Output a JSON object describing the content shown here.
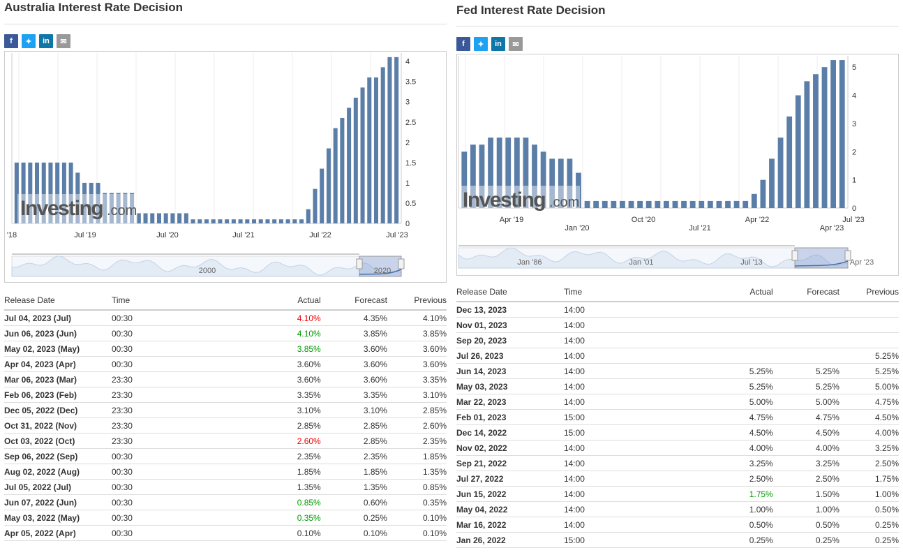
{
  "left": {
    "title": "Australia Interest Rate Decision",
    "share_icons": [
      "facebook-icon",
      "twitter-icon",
      "linkedin-icon",
      "email-icon"
    ],
    "watermark": "Investing",
    "watermark_suffix": ".com",
    "chart_data": {
      "type": "bar",
      "yticks": [
        "0",
        "0.5",
        "1",
        "1.5",
        "2",
        "2.5",
        "3",
        "3.5",
        "4"
      ],
      "ylim": [
        0,
        4.2
      ],
      "xticks": [
        "'18",
        "Jul '19",
        "Jul '20",
        "Jul '21",
        "Jul '22",
        "Jul '23"
      ],
      "values": [
        1.5,
        1.5,
        1.5,
        1.5,
        1.5,
        1.5,
        1.5,
        1.5,
        1.5,
        1.25,
        1.0,
        1.0,
        1.0,
        0.75,
        0.75,
        0.75,
        0.75,
        0.75,
        0.25,
        0.25,
        0.25,
        0.25,
        0.25,
        0.25,
        0.25,
        0.25,
        0.1,
        0.1,
        0.1,
        0.1,
        0.1,
        0.1,
        0.1,
        0.1,
        0.1,
        0.1,
        0.1,
        0.1,
        0.1,
        0.1,
        0.1,
        0.1,
        0.1,
        0.35,
        0.85,
        1.35,
        1.85,
        2.35,
        2.6,
        2.85,
        3.1,
        3.35,
        3.6,
        3.6,
        3.85,
        4.1,
        4.1
      ],
      "navigator_labels": [
        "2000",
        "2020"
      ]
    },
    "table": {
      "headers": {
        "date": "Release Date",
        "time": "Time",
        "actual": "Actual",
        "forecast": "Forecast",
        "previous": "Previous"
      },
      "rows": [
        {
          "date": "Jul 04, 2023 (Jul)",
          "time": "00:30",
          "actual": "4.10%",
          "forecast": "4.35%",
          "previous": "4.10%",
          "status": "red"
        },
        {
          "date": "Jun 06, 2023 (Jun)",
          "time": "00:30",
          "actual": "4.10%",
          "forecast": "3.85%",
          "previous": "3.85%",
          "status": "green"
        },
        {
          "date": "May 02, 2023 (May)",
          "time": "00:30",
          "actual": "3.85%",
          "forecast": "3.60%",
          "previous": "3.60%",
          "status": "green"
        },
        {
          "date": "Apr 04, 2023 (Apr)",
          "time": "00:30",
          "actual": "3.60%",
          "forecast": "3.60%",
          "previous": "3.60%",
          "status": "normal"
        },
        {
          "date": "Mar 06, 2023 (Mar)",
          "time": "23:30",
          "actual": "3.60%",
          "forecast": "3.60%",
          "previous": "3.35%",
          "status": "normal"
        },
        {
          "date": "Feb 06, 2023 (Feb)",
          "time": "23:30",
          "actual": "3.35%",
          "forecast": "3.35%",
          "previous": "3.10%",
          "status": "normal"
        },
        {
          "date": "Dec 05, 2022 (Dec)",
          "time": "23:30",
          "actual": "3.10%",
          "forecast": "3.10%",
          "previous": "2.85%",
          "status": "normal"
        },
        {
          "date": "Oct 31, 2022 (Nov)",
          "time": "23:30",
          "actual": "2.85%",
          "forecast": "2.85%",
          "previous": "2.60%",
          "status": "normal"
        },
        {
          "date": "Oct 03, 2022 (Oct)",
          "time": "23:30",
          "actual": "2.60%",
          "forecast": "2.85%",
          "previous": "2.35%",
          "status": "red"
        },
        {
          "date": "Sep 06, 2022 (Sep)",
          "time": "00:30",
          "actual": "2.35%",
          "forecast": "2.35%",
          "previous": "1.85%",
          "status": "normal"
        },
        {
          "date": "Aug 02, 2022 (Aug)",
          "time": "00:30",
          "actual": "1.85%",
          "forecast": "1.85%",
          "previous": "1.35%",
          "status": "normal"
        },
        {
          "date": "Jul 05, 2022 (Jul)",
          "time": "00:30",
          "actual": "1.35%",
          "forecast": "1.35%",
          "previous": "0.85%",
          "status": "normal"
        },
        {
          "date": "Jun 07, 2022 (Jun)",
          "time": "00:30",
          "actual": "0.85%",
          "forecast": "0.60%",
          "previous": "0.35%",
          "status": "green"
        },
        {
          "date": "May 03, 2022 (May)",
          "time": "00:30",
          "actual": "0.35%",
          "forecast": "0.25%",
          "previous": "0.10%",
          "status": "green"
        },
        {
          "date": "Apr 05, 2022 (Apr)",
          "time": "00:30",
          "actual": "0.10%",
          "forecast": "0.10%",
          "previous": "0.10%",
          "status": "normal"
        }
      ]
    }
  },
  "right": {
    "title": "Fed Interest Rate Decision",
    "share_icons": [
      "facebook-icon",
      "twitter-icon",
      "linkedin-icon",
      "email-icon"
    ],
    "watermark": "Investing",
    "watermark_suffix": ".com",
    "chart_data": {
      "type": "bar",
      "yticks": [
        "0",
        "1",
        "2",
        "3",
        "4",
        "5"
      ],
      "ylim": [
        0,
        5.4
      ],
      "xticks_row1": [
        "Apr '19",
        "Oct '20",
        "Apr '22",
        "Jul '23"
      ],
      "xticks_row2": [
        "Jan '20",
        "Jul '21",
        "Apr '23"
      ],
      "values": [
        2.0,
        2.25,
        2.25,
        2.5,
        2.5,
        2.5,
        2.5,
        2.5,
        2.25,
        2.0,
        1.75,
        1.75,
        1.75,
        1.25,
        0.25,
        0.25,
        0.25,
        0.25,
        0.25,
        0.25,
        0.25,
        0.25,
        0.25,
        0.25,
        0.25,
        0.25,
        0.25,
        0.25,
        0.25,
        0.25,
        0.25,
        0.25,
        0.25,
        0.5,
        1.0,
        1.75,
        2.5,
        3.25,
        4.0,
        4.5,
        4.75,
        5.0,
        5.25,
        5.25
      ],
      "navigator_labels": [
        "Jan '86",
        "Jan '01",
        "Jul '13",
        "Apr '23"
      ]
    },
    "table": {
      "headers": {
        "date": "Release Date",
        "time": "Time",
        "actual": "Actual",
        "forecast": "Forecast",
        "previous": "Previous"
      },
      "rows": [
        {
          "date": "Dec 13, 2023",
          "time": "14:00",
          "actual": "",
          "forecast": "",
          "previous": "",
          "status": "normal"
        },
        {
          "date": "Nov 01, 2023",
          "time": "14:00",
          "actual": "",
          "forecast": "",
          "previous": "",
          "status": "normal"
        },
        {
          "date": "Sep 20, 2023",
          "time": "14:00",
          "actual": "",
          "forecast": "",
          "previous": "",
          "status": "normal"
        },
        {
          "date": "Jul 26, 2023",
          "time": "14:00",
          "actual": "",
          "forecast": "",
          "previous": "5.25%",
          "status": "normal"
        },
        {
          "date": "Jun 14, 2023",
          "time": "14:00",
          "actual": "5.25%",
          "forecast": "5.25%",
          "previous": "5.25%",
          "status": "normal"
        },
        {
          "date": "May 03, 2023",
          "time": "14:00",
          "actual": "5.25%",
          "forecast": "5.25%",
          "previous": "5.00%",
          "status": "normal"
        },
        {
          "date": "Mar 22, 2023",
          "time": "14:00",
          "actual": "5.00%",
          "forecast": "5.00%",
          "previous": "4.75%",
          "status": "normal"
        },
        {
          "date": "Feb 01, 2023",
          "time": "15:00",
          "actual": "4.75%",
          "forecast": "4.75%",
          "previous": "4.50%",
          "status": "normal"
        },
        {
          "date": "Dec 14, 2022",
          "time": "15:00",
          "actual": "4.50%",
          "forecast": "4.50%",
          "previous": "4.00%",
          "status": "normal"
        },
        {
          "date": "Nov 02, 2022",
          "time": "14:00",
          "actual": "4.00%",
          "forecast": "4.00%",
          "previous": "3.25%",
          "status": "normal"
        },
        {
          "date": "Sep 21, 2022",
          "time": "14:00",
          "actual": "3.25%",
          "forecast": "3.25%",
          "previous": "2.50%",
          "status": "normal"
        },
        {
          "date": "Jul 27, 2022",
          "time": "14:00",
          "actual": "2.50%",
          "forecast": "2.50%",
          "previous": "1.75%",
          "status": "normal"
        },
        {
          "date": "Jun 15, 2022",
          "time": "14:00",
          "actual": "1.75%",
          "forecast": "1.50%",
          "previous": "1.00%",
          "status": "green"
        },
        {
          "date": "May 04, 2022",
          "time": "14:00",
          "actual": "1.00%",
          "forecast": "1.00%",
          "previous": "0.50%",
          "status": "normal"
        },
        {
          "date": "Mar 16, 2022",
          "time": "14:00",
          "actual": "0.50%",
          "forecast": "0.50%",
          "previous": "0.25%",
          "status": "normal"
        },
        {
          "date": "Jan 26, 2022",
          "time": "15:00",
          "actual": "0.25%",
          "forecast": "0.25%",
          "previous": "0.25%",
          "status": "normal"
        }
      ]
    }
  },
  "colors": {
    "bar": "#5b7ea8",
    "bar_light": "#a9bcd3",
    "accent_red": "#e00000",
    "accent_green": "#009900"
  }
}
